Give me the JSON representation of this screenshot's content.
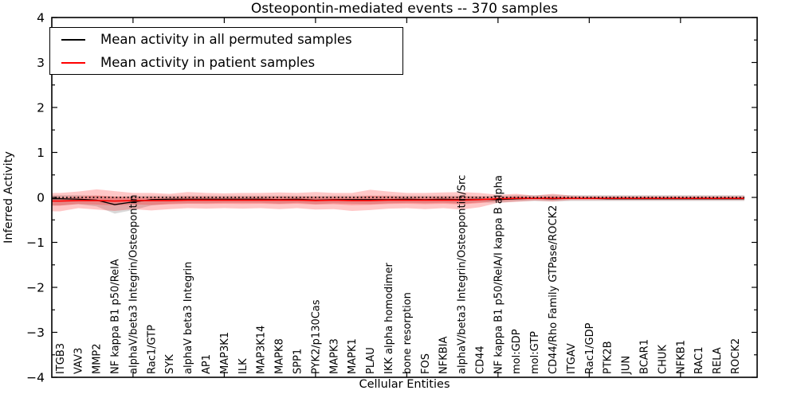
{
  "figure": {
    "title": "Osteopontin-mediated events -- 370 samples",
    "xlabel": "Cellular Entities",
    "ylabel": "Inferred Activity",
    "legend": {
      "entries": [
        {
          "label": "Mean activity in all permuted samples",
          "color": "#000000"
        },
        {
          "label": "Mean activity in patient samples",
          "color": "#ff0000"
        }
      ],
      "position": "upper left"
    }
  },
  "chart_data": {
    "type": "line",
    "title": "Osteopontin-mediated events -- 370 samples",
    "xlabel": "Cellular Entities",
    "ylabel": "Inferred Activity",
    "ylim": [
      -4,
      4
    ],
    "yticks": [
      -4,
      -3,
      -2,
      -1,
      0,
      1,
      2,
      3,
      4
    ],
    "y_minor_step": 0.5,
    "x_major_ticks": [
      5,
      10,
      15,
      20,
      25,
      30,
      35
    ],
    "xlim": [
      0.55,
      39.2
    ],
    "grid": false,
    "legend_position": "upper left",
    "zero_line": {
      "y": 0,
      "style": "dotted",
      "color": "#000000"
    },
    "categories": [
      "ITGB3",
      "VAV3",
      "MMP2",
      "NF kappa B1 p50/RelA",
      "alphaV/beta3 Integrin/Osteopontin",
      "Rac1/GTP",
      "SYK",
      "alphaV beta3 Integrin",
      "AP1",
      "MAP3K1",
      "ILK",
      "MAP3K14",
      "MAPK8",
      "SPP1",
      "PYK2/p130Cas",
      "MAPK3",
      "MAPK1",
      "PLAU",
      "IKK alpha homodimer",
      "bone resorption",
      "FOS",
      "NFKBIA",
      "alphaV/beta3 Integrin/Osteopontin/Src",
      "CD44",
      "NF kappa B1 p50/RelA/I kappa B alpha",
      "mol:GDP",
      "mol:GTP",
      "CD44/Rho Family GTPase/ROCK2",
      "ITGAV",
      "Rac1/GDP",
      "PTK2B",
      "JUN",
      "BCAR1",
      "CHUK",
      "NFKB1",
      "RAC1",
      "RELA",
      "ROCK2"
    ],
    "series": [
      {
        "name": "Mean activity in all permuted samples",
        "color": "#000000",
        "band_color": "rgba(130,130,130,0.30)",
        "values": [
          -0.03,
          -0.04,
          -0.06,
          -0.16,
          -0.1,
          -0.05,
          -0.04,
          -0.04,
          -0.04,
          -0.04,
          -0.04,
          -0.04,
          -0.05,
          -0.04,
          -0.06,
          -0.05,
          -0.05,
          -0.05,
          -0.05,
          -0.04,
          -0.05,
          -0.04,
          -0.05,
          -0.04,
          -0.05,
          -0.03,
          -0.02,
          -0.03,
          -0.02,
          -0.02,
          -0.03,
          -0.03,
          -0.03,
          -0.03,
          -0.03,
          -0.03,
          -0.03,
          -0.03
        ],
        "band_upper": [
          0.05,
          0.05,
          0.04,
          0.02,
          0.03,
          0.04,
          0.04,
          0.04,
          0.04,
          0.04,
          0.04,
          0.04,
          0.04,
          0.04,
          0.03,
          0.04,
          0.04,
          0.04,
          0.04,
          0.04,
          0.04,
          0.04,
          0.04,
          0.03,
          0.04,
          0.05,
          0.05,
          0.06,
          0.05,
          0.05,
          0.05,
          0.05,
          0.05,
          0.05,
          0.05,
          0.05,
          0.05,
          0.05
        ],
        "band_lower": [
          -0.18,
          -0.15,
          -0.2,
          -0.36,
          -0.28,
          -0.18,
          -0.14,
          -0.13,
          -0.13,
          -0.12,
          -0.12,
          -0.12,
          -0.14,
          -0.12,
          -0.15,
          -0.13,
          -0.14,
          -0.15,
          -0.13,
          -0.12,
          -0.13,
          -0.12,
          -0.14,
          -0.11,
          -0.12,
          -0.09,
          -0.08,
          -0.09,
          -0.08,
          -0.08,
          -0.08,
          -0.08,
          -0.08,
          -0.08,
          -0.08,
          -0.08,
          -0.08,
          -0.08
        ]
      },
      {
        "name": "Mean activity in patient samples",
        "color": "#ff0000",
        "band_color": "rgba(255,0,0,0.22)",
        "values": [
          -0.08,
          -0.07,
          -0.07,
          -0.08,
          -0.07,
          -0.07,
          -0.07,
          -0.06,
          -0.06,
          -0.06,
          -0.06,
          -0.06,
          -0.06,
          -0.06,
          -0.07,
          -0.06,
          -0.07,
          -0.07,
          -0.06,
          -0.06,
          -0.06,
          -0.06,
          -0.06,
          -0.05,
          -0.03,
          -0.02,
          -0.02,
          -0.02,
          -0.02,
          -0.02,
          -0.02,
          -0.02,
          -0.02,
          -0.02,
          -0.02,
          -0.02,
          -0.02,
          -0.02
        ],
        "band_upper": [
          0.1,
          0.13,
          0.18,
          0.14,
          0.1,
          0.1,
          0.08,
          0.12,
          0.1,
          0.09,
          0.1,
          0.1,
          0.11,
          0.1,
          0.12,
          0.1,
          0.1,
          0.17,
          0.13,
          0.1,
          0.1,
          0.11,
          0.12,
          0.1,
          0.06,
          0.08,
          0.04,
          0.08,
          0.04,
          0.03,
          0.03,
          0.03,
          0.03,
          0.03,
          0.03,
          0.03,
          0.03,
          0.03
        ],
        "band_lower": [
          -0.31,
          -0.24,
          -0.27,
          -0.3,
          -0.26,
          -0.29,
          -0.26,
          -0.24,
          -0.25,
          -0.24,
          -0.25,
          -0.24,
          -0.26,
          -0.24,
          -0.27,
          -0.26,
          -0.3,
          -0.28,
          -0.25,
          -0.24,
          -0.26,
          -0.24,
          -0.27,
          -0.22,
          -0.12,
          -0.1,
          -0.07,
          -0.09,
          -0.06,
          -0.06,
          -0.06,
          -0.06,
          -0.06,
          -0.06,
          -0.06,
          -0.06,
          -0.06,
          -0.06
        ],
        "inner_band_ratio": 0.45
      }
    ]
  }
}
